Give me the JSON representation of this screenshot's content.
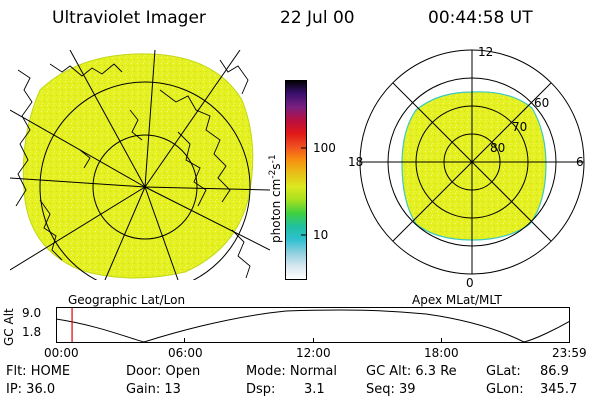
{
  "header": {
    "instrument": "Ultraviolet Imager",
    "date": "22 Jul 00",
    "time": "00:44:58 UT"
  },
  "colors": {
    "emission": "#e4f020",
    "map_line": "#000000",
    "marker": "#dd0000"
  },
  "colorbar": {
    "label_main": "photon cm",
    "label_sup1": "-2",
    "label_s": "s",
    "label_sup2": "-1",
    "tick_100": "100",
    "tick_10": "10",
    "stops": [
      "#000000",
      "#3a1070",
      "#7a2080",
      "#b81040",
      "#e01818",
      "#f05020",
      "#f89010",
      "#e8c018",
      "#dce820",
      "#a8e020",
      "#40d040",
      "#20c0a0",
      "#30c0d0",
      "#90d0e0",
      "#d8e8f0",
      "#ffffff"
    ]
  },
  "panels": {
    "left_label": "Geographic Lat/Lon",
    "right_label": "Apex MLat/MLT",
    "mlt": {
      "top": "12",
      "left": "18",
      "right": "6",
      "bottom": "0"
    },
    "mlat": {
      "r60": "60",
      "r70": "70",
      "r80": "80"
    }
  },
  "altitude_plot": {
    "ylabel": "GC Alt",
    "y_max": "9.0",
    "y_min": "1.8",
    "x_ticks": [
      "00:00",
      "06:00",
      "12:00",
      "18:00",
      "23:59"
    ],
    "marker_time": "00:44:58"
  },
  "info": {
    "flt": "Flt: HOME",
    "ip": "IP: 36.0",
    "door": "Door: Open",
    "gain": "Gain: 13",
    "mode": "Mode: Normal",
    "dsp_label": "Dsp:",
    "dsp_value": "3.1",
    "gc_alt": "GC Alt: 6.3 Re",
    "seq": "Seq: 39",
    "glat_label": "GLat:",
    "glat_value": "86.9",
    "glon_label": "GLon:",
    "glon_value": "345.7"
  }
}
